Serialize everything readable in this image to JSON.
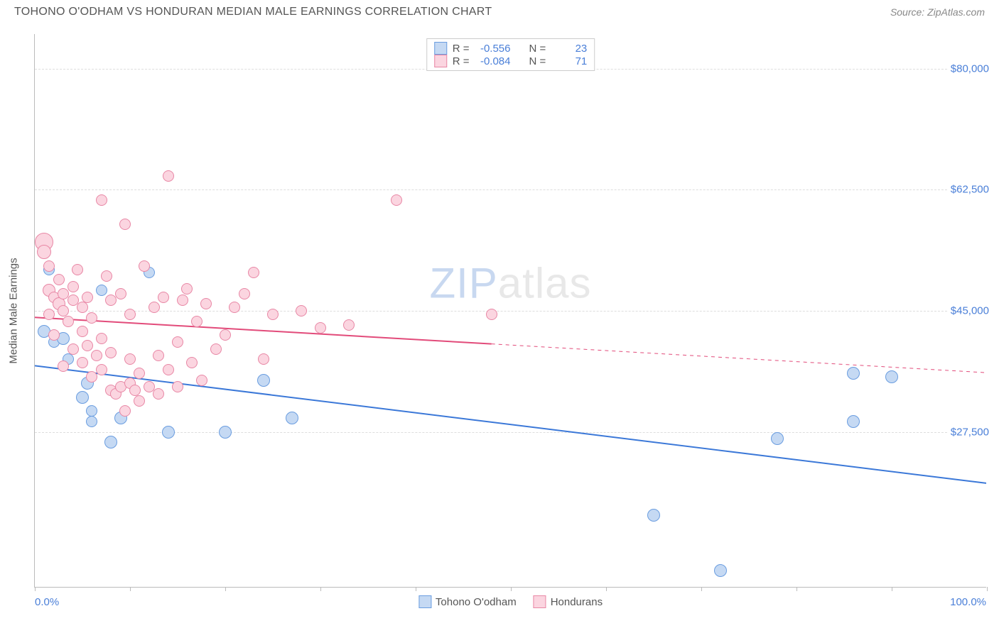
{
  "title": "TOHONO O'ODHAM VS HONDURAN MEDIAN MALE EARNINGS CORRELATION CHART",
  "source": "Source: ZipAtlas.com",
  "watermark_zip": "ZIP",
  "watermark_atlas": "atlas",
  "y_axis_title": "Median Male Earnings",
  "x_min_label": "0.0%",
  "x_max_label": "100.0%",
  "chart": {
    "type": "scatter",
    "xlim": [
      0,
      100
    ],
    "ylim": [
      5000,
      85000
    ],
    "y_ticks": [
      27500,
      45000,
      62500,
      80000
    ],
    "y_tick_labels": [
      "$27,500",
      "$45,000",
      "$62,500",
      "$80,000"
    ],
    "x_tick_positions": [
      0,
      10,
      20,
      30,
      40,
      50,
      60,
      70,
      80,
      90,
      100
    ],
    "background_color": "#ffffff",
    "grid_color": "#dddddd",
    "axis_color": "#bbbbbb",
    "text_color": "#555555",
    "value_color": "#4a7fd8",
    "series": [
      {
        "name": "Tohono O'odham",
        "fill": "#c5d9f3",
        "stroke": "#6a9de0",
        "r_value": "-0.556",
        "n_value": "23",
        "trend": {
          "x1": 0,
          "y1": 37000,
          "x2": 100,
          "y2": 20000,
          "solid_until": 100,
          "color": "#3b78d8",
          "width": 2
        },
        "points": [
          {
            "x": 1,
            "y": 42000,
            "r": 9
          },
          {
            "x": 1.5,
            "y": 51000,
            "r": 8
          },
          {
            "x": 2,
            "y": 40500,
            "r": 8
          },
          {
            "x": 3,
            "y": 41000,
            "r": 9
          },
          {
            "x": 3.5,
            "y": 38000,
            "r": 8
          },
          {
            "x": 5,
            "y": 32500,
            "r": 9
          },
          {
            "x": 5.5,
            "y": 34500,
            "r": 9
          },
          {
            "x": 6,
            "y": 30500,
            "r": 8
          },
          {
            "x": 6,
            "y": 29000,
            "r": 8
          },
          {
            "x": 7,
            "y": 48000,
            "r": 8
          },
          {
            "x": 8,
            "y": 26000,
            "r": 9
          },
          {
            "x": 9,
            "y": 29500,
            "r": 9
          },
          {
            "x": 12,
            "y": 50500,
            "r": 8
          },
          {
            "x": 14,
            "y": 27500,
            "r": 9
          },
          {
            "x": 20,
            "y": 27500,
            "r": 9
          },
          {
            "x": 24,
            "y": 35000,
            "r": 9
          },
          {
            "x": 27,
            "y": 29500,
            "r": 9
          },
          {
            "x": 65,
            "y": 15500,
            "r": 9
          },
          {
            "x": 72,
            "y": 7500,
            "r": 9
          },
          {
            "x": 78,
            "y": 26500,
            "r": 9
          },
          {
            "x": 86,
            "y": 29000,
            "r": 9
          },
          {
            "x": 86,
            "y": 36000,
            "r": 9
          },
          {
            "x": 90,
            "y": 35500,
            "r": 9
          }
        ]
      },
      {
        "name": "Hondurans",
        "fill": "#fbd5e0",
        "stroke": "#e887a5",
        "r_value": "-0.084",
        "n_value": "71",
        "trend": {
          "x1": 0,
          "y1": 44000,
          "x2": 100,
          "y2": 36000,
          "solid_until": 48,
          "color": "#e24b7a",
          "width": 2
        },
        "points": [
          {
            "x": 1,
            "y": 55000,
            "r": 13
          },
          {
            "x": 1,
            "y": 53500,
            "r": 10
          },
          {
            "x": 1.5,
            "y": 51500,
            "r": 8
          },
          {
            "x": 1.5,
            "y": 48000,
            "r": 9
          },
          {
            "x": 1.5,
            "y": 44500,
            "r": 8
          },
          {
            "x": 2,
            "y": 47000,
            "r": 8
          },
          {
            "x": 2,
            "y": 41500,
            "r": 8
          },
          {
            "x": 2.5,
            "y": 46000,
            "r": 9
          },
          {
            "x": 2.5,
            "y": 49500,
            "r": 8
          },
          {
            "x": 3,
            "y": 37000,
            "r": 8
          },
          {
            "x": 3,
            "y": 47500,
            "r": 8
          },
          {
            "x": 3,
            "y": 45000,
            "r": 8
          },
          {
            "x": 3.5,
            "y": 43500,
            "r": 8
          },
          {
            "x": 4,
            "y": 48500,
            "r": 8
          },
          {
            "x": 4,
            "y": 39500,
            "r": 8
          },
          {
            "x": 4,
            "y": 46500,
            "r": 8
          },
          {
            "x": 4.5,
            "y": 51000,
            "r": 8
          },
          {
            "x": 5,
            "y": 45500,
            "r": 8
          },
          {
            "x": 5,
            "y": 42000,
            "r": 8
          },
          {
            "x": 5,
            "y": 37500,
            "r": 8
          },
          {
            "x": 5.5,
            "y": 47000,
            "r": 8
          },
          {
            "x": 5.5,
            "y": 40000,
            "r": 8
          },
          {
            "x": 6,
            "y": 44000,
            "r": 8
          },
          {
            "x": 6,
            "y": 35500,
            "r": 8
          },
          {
            "x": 6.5,
            "y": 38500,
            "r": 8
          },
          {
            "x": 7,
            "y": 61000,
            "r": 8
          },
          {
            "x": 7,
            "y": 41000,
            "r": 8
          },
          {
            "x": 7,
            "y": 36500,
            "r": 8
          },
          {
            "x": 7.5,
            "y": 50000,
            "r": 8
          },
          {
            "x": 8,
            "y": 46500,
            "r": 8
          },
          {
            "x": 8,
            "y": 39000,
            "r": 8
          },
          {
            "x": 8,
            "y": 33500,
            "r": 8
          },
          {
            "x": 8.5,
            "y": 33000,
            "r": 8
          },
          {
            "x": 9,
            "y": 47500,
            "r": 8
          },
          {
            "x": 9,
            "y": 34000,
            "r": 8
          },
          {
            "x": 9.5,
            "y": 30500,
            "r": 8
          },
          {
            "x": 9.5,
            "y": 57500,
            "r": 8
          },
          {
            "x": 10,
            "y": 44500,
            "r": 8
          },
          {
            "x": 10,
            "y": 38000,
            "r": 8
          },
          {
            "x": 10,
            "y": 34500,
            "r": 8
          },
          {
            "x": 10.5,
            "y": 33500,
            "r": 8
          },
          {
            "x": 11,
            "y": 36000,
            "r": 8
          },
          {
            "x": 11,
            "y": 32000,
            "r": 8
          },
          {
            "x": 11.5,
            "y": 51500,
            "r": 8
          },
          {
            "x": 12,
            "y": 34000,
            "r": 8
          },
          {
            "x": 12.5,
            "y": 45500,
            "r": 8
          },
          {
            "x": 13,
            "y": 38500,
            "r": 8
          },
          {
            "x": 13,
            "y": 33000,
            "r": 8
          },
          {
            "x": 13.5,
            "y": 47000,
            "r": 8
          },
          {
            "x": 14,
            "y": 36500,
            "r": 8
          },
          {
            "x": 14,
            "y": 64500,
            "r": 8
          },
          {
            "x": 15,
            "y": 40500,
            "r": 8
          },
          {
            "x": 15,
            "y": 34000,
            "r": 8
          },
          {
            "x": 15.5,
            "y": 46500,
            "r": 8
          },
          {
            "x": 16,
            "y": 48200,
            "r": 8
          },
          {
            "x": 16.5,
            "y": 37500,
            "r": 8
          },
          {
            "x": 17,
            "y": 43500,
            "r": 8
          },
          {
            "x": 17.5,
            "y": 35000,
            "r": 8
          },
          {
            "x": 18,
            "y": 46000,
            "r": 8
          },
          {
            "x": 19,
            "y": 39500,
            "r": 8
          },
          {
            "x": 20,
            "y": 41500,
            "r": 8
          },
          {
            "x": 21,
            "y": 45500,
            "r": 8
          },
          {
            "x": 22,
            "y": 47500,
            "r": 8
          },
          {
            "x": 23,
            "y": 50500,
            "r": 8
          },
          {
            "x": 24,
            "y": 38000,
            "r": 8
          },
          {
            "x": 25,
            "y": 44500,
            "r": 8
          },
          {
            "x": 28,
            "y": 45000,
            "r": 8
          },
          {
            "x": 30,
            "y": 42500,
            "r": 8
          },
          {
            "x": 33,
            "y": 43000,
            "r": 8
          },
          {
            "x": 38,
            "y": 61000,
            "r": 8
          },
          {
            "x": 48,
            "y": 44500,
            "r": 8
          }
        ]
      }
    ]
  },
  "legend": {
    "series1_label": "Tohono O'odham",
    "series2_label": "Hondurans"
  },
  "stats_labels": {
    "r": "R =",
    "n": "N ="
  }
}
